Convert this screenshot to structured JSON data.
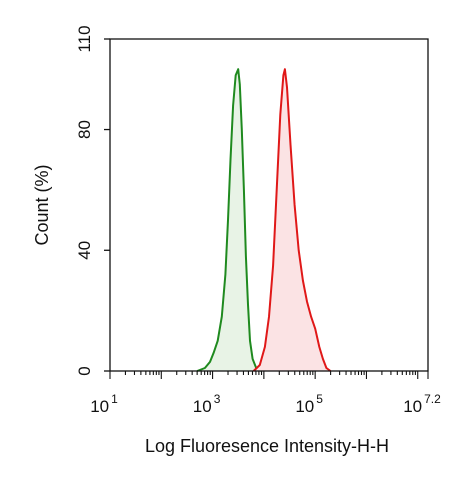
{
  "chart_data": {
    "type": "area",
    "xlabel": "Log Fluoresence Intensity-H-H",
    "ylabel": "Count  (%)",
    "x_scale": "log10",
    "xlim_log10": [
      1,
      7.2
    ],
    "ylim": [
      0,
      110
    ],
    "y_ticks": [
      {
        "value": 0,
        "label": "0"
      },
      {
        "value": 40,
        "label": "40"
      },
      {
        "value": 80,
        "label": "80"
      },
      {
        "value": 110,
        "label": "110"
      }
    ],
    "x_ticks": [
      {
        "value": 1,
        "base": "10",
        "exp": "1"
      },
      {
        "value": 3,
        "base": "10",
        "exp": "3"
      },
      {
        "value": 5,
        "base": "10",
        "exp": "5"
      },
      {
        "value": 7.2,
        "base": "10",
        "exp": "7.2"
      }
    ],
    "grid": false,
    "legend": "none",
    "series": [
      {
        "color": "#1f8a1f",
        "fill": "#e8f3e6",
        "points": [
          [
            2.7,
            0
          ],
          [
            2.85,
            1
          ],
          [
            2.95,
            3
          ],
          [
            3.02,
            6
          ],
          [
            3.1,
            10
          ],
          [
            3.18,
            18
          ],
          [
            3.25,
            32
          ],
          [
            3.3,
            50
          ],
          [
            3.35,
            70
          ],
          [
            3.4,
            88
          ],
          [
            3.45,
            98
          ],
          [
            3.5,
            100
          ],
          [
            3.53,
            95
          ],
          [
            3.57,
            80
          ],
          [
            3.61,
            60
          ],
          [
            3.65,
            38
          ],
          [
            3.69,
            22
          ],
          [
            3.73,
            10
          ],
          [
            3.78,
            4
          ],
          [
            3.85,
            1
          ],
          [
            3.95,
            0
          ]
        ]
      },
      {
        "color": "#e01818",
        "fill": "#fbe3e4",
        "points": [
          [
            3.8,
            0
          ],
          [
            3.92,
            2
          ],
          [
            4.02,
            8
          ],
          [
            4.1,
            18
          ],
          [
            4.18,
            35
          ],
          [
            4.25,
            60
          ],
          [
            4.32,
            85
          ],
          [
            4.38,
            98
          ],
          [
            4.41,
            100
          ],
          [
            4.45,
            94
          ],
          [
            4.52,
            75
          ],
          [
            4.6,
            55
          ],
          [
            4.68,
            40
          ],
          [
            4.76,
            30
          ],
          [
            4.84,
            23
          ],
          [
            4.92,
            18
          ],
          [
            5.0,
            14
          ],
          [
            5.08,
            8
          ],
          [
            5.15,
            4
          ],
          [
            5.22,
            1
          ],
          [
            5.3,
            0
          ]
        ]
      }
    ]
  }
}
